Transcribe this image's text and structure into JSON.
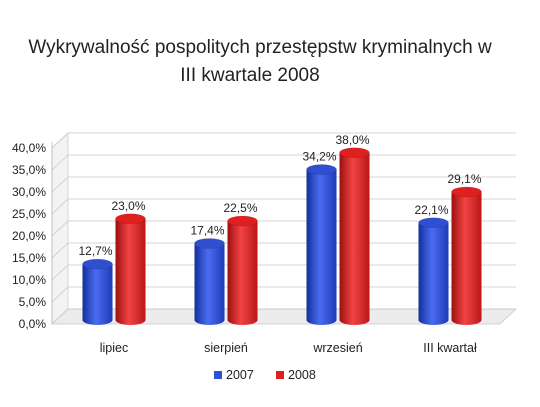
{
  "chart_data": {
    "type": "bar",
    "title_line1": "Wykrywalność pospolitych przestępstw kryminalnych w",
    "title_line2": "III kwartale 2008",
    "categories": [
      "lipiec",
      "sierpień",
      "wrzesień",
      "III kwartał"
    ],
    "series": [
      {
        "name": "2007",
        "color": "#2f4fd0",
        "values": [
          12.7,
          17.4,
          34.2,
          22.1
        ],
        "labels": [
          "12,7%",
          "17,4%",
          "34,2%",
          "22,1%"
        ]
      },
      {
        "name": "2008",
        "color": "#e02020",
        "values": [
          23.0,
          22.5,
          38.0,
          29.1
        ],
        "labels": [
          "23,0%",
          "22,5%",
          "38,0%",
          "29,1%"
        ]
      }
    ],
    "y_ticks": [
      0,
      5,
      10,
      15,
      20,
      25,
      30,
      35,
      40
    ],
    "y_tick_labels": [
      "0,0%",
      "5,0%",
      "10,0%",
      "15,0%",
      "20,0%",
      "25,0%",
      "30,0%",
      "35,0%",
      "40,0%"
    ],
    "ylim": [
      0,
      40
    ],
    "grid": true,
    "legend_position": "bottom",
    "style": "3d-cylinder"
  }
}
